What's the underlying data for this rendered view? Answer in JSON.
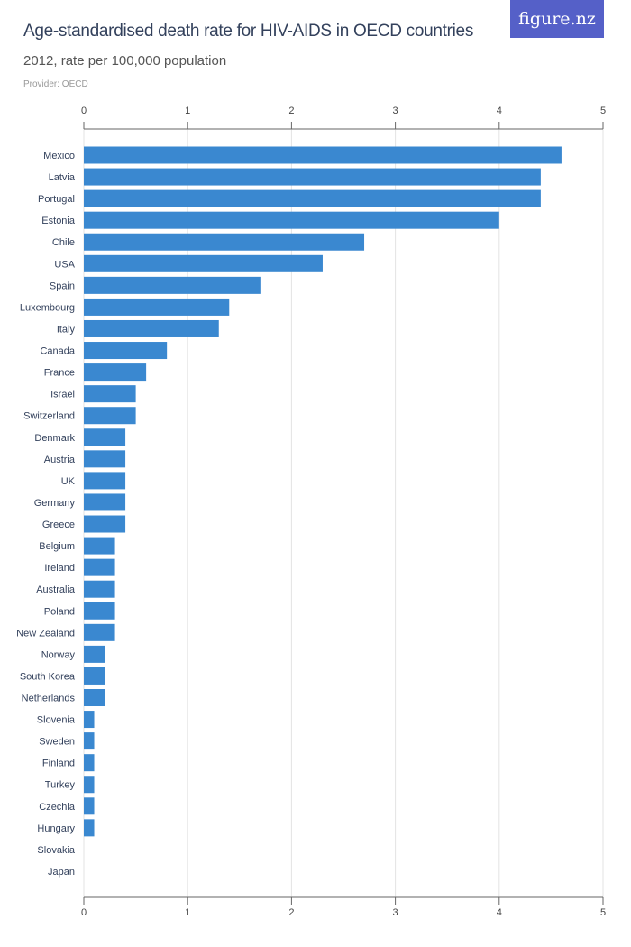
{
  "logo": "figure.nz",
  "chart_data": {
    "type": "bar",
    "orientation": "horizontal",
    "title": "Age-standardised death rate for HIV-AIDS in OECD countries",
    "subtitle": "2012, rate per 100,000 population",
    "provider": "Provider: OECD",
    "xlim": [
      0,
      5
    ],
    "ticks": [
      0,
      1,
      2,
      3,
      4,
      5
    ],
    "grid": true,
    "bar_color": "#3a88d0",
    "categories": [
      "Mexico",
      "Latvia",
      "Portugal",
      "Estonia",
      "Chile",
      "USA",
      "Spain",
      "Luxembourg",
      "Italy",
      "Canada",
      "France",
      "Israel",
      "Switzerland",
      "Denmark",
      "Austria",
      "UK",
      "Germany",
      "Greece",
      "Belgium",
      "Ireland",
      "Australia",
      "Poland",
      "New Zealand",
      "Norway",
      "South Korea",
      "Netherlands",
      "Slovenia",
      "Sweden",
      "Finland",
      "Turkey",
      "Czechia",
      "Hungary",
      "Slovakia",
      "Japan"
    ],
    "values": [
      4.6,
      4.4,
      4.4,
      4.0,
      2.7,
      2.3,
      1.7,
      1.4,
      1.3,
      0.8,
      0.6,
      0.5,
      0.5,
      0.4,
      0.4,
      0.4,
      0.4,
      0.4,
      0.3,
      0.3,
      0.3,
      0.3,
      0.3,
      0.2,
      0.2,
      0.2,
      0.1,
      0.1,
      0.1,
      0.1,
      0.1,
      0.1,
      0,
      0
    ]
  }
}
